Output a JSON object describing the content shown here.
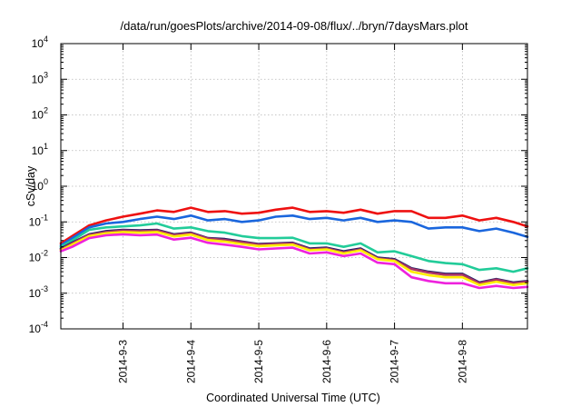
{
  "chart_data": {
    "type": "line",
    "title": "/data/run/goesPlots/archive/2014-09-08/flux/../bryn/7daysMars.plot",
    "xlabel": "Coordinated Universal Time (UTC)",
    "ylabel": "cSv/day",
    "yscale": "log",
    "ylim": [
      0.0001,
      10000
    ],
    "y_ticks": [
      {
        "base": "10",
        "exp": "-4",
        "value": 0.0001
      },
      {
        "base": "10",
        "exp": "-3",
        "value": 0.001
      },
      {
        "base": "10",
        "exp": "-2",
        "value": 0.01
      },
      {
        "base": "10",
        "exp": "-1",
        "value": 0.1
      },
      {
        "base": "10",
        "exp": "0",
        "value": 1
      },
      {
        "base": "10",
        "exp": "1",
        "value": 10
      },
      {
        "base": "10",
        "exp": "2",
        "value": 100
      },
      {
        "base": "10",
        "exp": "3",
        "value": 1000
      },
      {
        "base": "10",
        "exp": "4",
        "value": 10000
      }
    ],
    "xlim": [
      "2014-09-02T02:00",
      "2014-09-08T23:00"
    ],
    "x_ticks": [
      "2014-9-3",
      "2014-9-4",
      "2014-9-5",
      "2014-9-6",
      "2014-9-7",
      "2014-9-8"
    ],
    "grid": true,
    "series": [
      {
        "color": "#ee1111",
        "x": [
          "2014-09-02T02:00",
          "2014-09-02T06:00",
          "2014-09-02T12:00",
          "2014-09-02T18:00",
          "2014-09-03T00:00",
          "2014-09-03T06:00",
          "2014-09-03T12:00",
          "2014-09-03T18:00",
          "2014-09-04T00:00",
          "2014-09-04T06:00",
          "2014-09-04T12:00",
          "2014-09-04T18:00",
          "2014-09-05T00:00",
          "2014-09-05T06:00",
          "2014-09-05T12:00",
          "2014-09-05T18:00",
          "2014-09-06T00:00",
          "2014-09-06T06:00",
          "2014-09-06T12:00",
          "2014-09-06T18:00",
          "2014-09-07T00:00",
          "2014-09-07T06:00",
          "2014-09-07T12:00",
          "2014-09-07T18:00",
          "2014-09-08T00:00",
          "2014-09-08T06:00",
          "2014-09-08T12:00",
          "2014-09-08T18:00",
          "2014-09-08T23:00"
        ],
        "y": [
          0.025,
          0.04,
          0.08,
          0.11,
          0.14,
          0.17,
          0.21,
          0.19,
          0.25,
          0.19,
          0.2,
          0.17,
          0.18,
          0.22,
          0.25,
          0.19,
          0.2,
          0.18,
          0.22,
          0.17,
          0.2,
          0.2,
          0.13,
          0.13,
          0.15,
          0.11,
          0.13,
          0.1,
          0.075
        ]
      },
      {
        "color": "#1a66dd",
        "x": [
          "2014-09-02T02:00",
          "2014-09-02T06:00",
          "2014-09-02T12:00",
          "2014-09-02T18:00",
          "2014-09-03T00:00",
          "2014-09-03T06:00",
          "2014-09-03T12:00",
          "2014-09-03T18:00",
          "2014-09-04T00:00",
          "2014-09-04T06:00",
          "2014-09-04T12:00",
          "2014-09-04T18:00",
          "2014-09-05T00:00",
          "2014-09-05T06:00",
          "2014-09-05T12:00",
          "2014-09-05T18:00",
          "2014-09-06T00:00",
          "2014-09-06T06:00",
          "2014-09-06T12:00",
          "2014-09-06T18:00",
          "2014-09-07T00:00",
          "2014-09-07T06:00",
          "2014-09-07T12:00",
          "2014-09-07T18:00",
          "2014-09-08T00:00",
          "2014-09-08T06:00",
          "2014-09-08T12:00",
          "2014-09-08T18:00",
          "2014-09-08T23:00"
        ],
        "y": [
          0.022,
          0.035,
          0.07,
          0.09,
          0.1,
          0.12,
          0.14,
          0.12,
          0.15,
          0.11,
          0.12,
          0.1,
          0.11,
          0.14,
          0.15,
          0.12,
          0.13,
          0.11,
          0.13,
          0.1,
          0.11,
          0.1,
          0.065,
          0.07,
          0.07,
          0.055,
          0.065,
          0.05,
          0.038
        ]
      },
      {
        "color": "#22cc99",
        "x": [
          "2014-09-02T02:00",
          "2014-09-02T06:00",
          "2014-09-02T12:00",
          "2014-09-02T18:00",
          "2014-09-03T00:00",
          "2014-09-03T06:00",
          "2014-09-03T12:00",
          "2014-09-03T18:00",
          "2014-09-04T00:00",
          "2014-09-04T06:00",
          "2014-09-04T12:00",
          "2014-09-04T18:00",
          "2014-09-05T00:00",
          "2014-09-05T06:00",
          "2014-09-05T12:00",
          "2014-09-05T18:00",
          "2014-09-06T00:00",
          "2014-09-06T06:00",
          "2014-09-06T12:00",
          "2014-09-06T18:00",
          "2014-09-07T00:00",
          "2014-09-07T06:00",
          "2014-09-07T12:00",
          "2014-09-07T18:00",
          "2014-09-08T00:00",
          "2014-09-08T06:00",
          "2014-09-08T12:00",
          "2014-09-08T18:00",
          "2014-09-08T23:00"
        ],
        "y": [
          0.02,
          0.03,
          0.06,
          0.07,
          0.075,
          0.08,
          0.09,
          0.065,
          0.07,
          0.055,
          0.05,
          0.04,
          0.035,
          0.035,
          0.036,
          0.025,
          0.025,
          0.02,
          0.025,
          0.014,
          0.015,
          0.011,
          0.008,
          0.007,
          0.0065,
          0.0045,
          0.005,
          0.004,
          0.005
        ]
      },
      {
        "color": "#222266",
        "x": [
          "2014-09-02T02:00",
          "2014-09-02T06:00",
          "2014-09-02T12:00",
          "2014-09-02T18:00",
          "2014-09-03T00:00",
          "2014-09-03T06:00",
          "2014-09-03T12:00",
          "2014-09-03T18:00",
          "2014-09-04T00:00",
          "2014-09-04T06:00",
          "2014-09-04T12:00",
          "2014-09-04T18:00",
          "2014-09-05T00:00",
          "2014-09-05T06:00",
          "2014-09-05T12:00",
          "2014-09-05T18:00",
          "2014-09-06T00:00",
          "2014-09-06T06:00",
          "2014-09-06T12:00",
          "2014-09-06T18:00",
          "2014-09-07T00:00",
          "2014-09-07T06:00",
          "2014-09-07T12:00",
          "2014-09-07T18:00",
          "2014-09-08T00:00",
          "2014-09-08T06:00",
          "2014-09-08T12:00",
          "2014-09-08T18:00",
          "2014-09-08T23:00"
        ],
        "y": [
          0.018,
          0.026,
          0.045,
          0.055,
          0.06,
          0.058,
          0.06,
          0.045,
          0.05,
          0.035,
          0.033,
          0.028,
          0.024,
          0.025,
          0.026,
          0.018,
          0.019,
          0.015,
          0.018,
          0.01,
          0.009,
          0.005,
          0.004,
          0.0035,
          0.0035,
          0.002,
          0.0025,
          0.002,
          0.0022
        ]
      },
      {
        "color": "#aa3366",
        "x": [
          "2014-09-02T02:00",
          "2014-09-02T06:00",
          "2014-09-02T12:00",
          "2014-09-02T18:00",
          "2014-09-03T00:00",
          "2014-09-03T06:00",
          "2014-09-03T12:00",
          "2014-09-03T18:00",
          "2014-09-04T00:00",
          "2014-09-04T06:00",
          "2014-09-04T12:00",
          "2014-09-04T18:00",
          "2014-09-05T00:00",
          "2014-09-05T06:00",
          "2014-09-05T12:00",
          "2014-09-05T18:00",
          "2014-09-06T00:00",
          "2014-09-06T06:00",
          "2014-09-06T12:00",
          "2014-09-06T18:00",
          "2014-09-07T00:00",
          "2014-09-07T06:00",
          "2014-09-07T12:00",
          "2014-09-07T18:00",
          "2014-09-08T00:00",
          "2014-09-08T06:00",
          "2014-09-08T12:00",
          "2014-09-08T18:00",
          "2014-09-08T23:00"
        ],
        "y": [
          0.017,
          0.025,
          0.043,
          0.052,
          0.057,
          0.055,
          0.057,
          0.043,
          0.048,
          0.034,
          0.031,
          0.027,
          0.023,
          0.024,
          0.025,
          0.017,
          0.018,
          0.014,
          0.017,
          0.0095,
          0.0085,
          0.0048,
          0.0038,
          0.0033,
          0.0033,
          0.0019,
          0.0024,
          0.0019,
          0.0021
        ]
      },
      {
        "color": "#ffee00",
        "x": [
          "2014-09-02T02:00",
          "2014-09-02T06:00",
          "2014-09-02T12:00",
          "2014-09-02T18:00",
          "2014-09-03T00:00",
          "2014-09-03T06:00",
          "2014-09-03T12:00",
          "2014-09-03T18:00",
          "2014-09-04T00:00",
          "2014-09-04T06:00",
          "2014-09-04T12:00",
          "2014-09-04T18:00",
          "2014-09-05T00:00",
          "2014-09-05T06:00",
          "2014-09-05T12:00",
          "2014-09-05T18:00",
          "2014-09-06T00:00",
          "2014-09-06T06:00",
          "2014-09-06T12:00",
          "2014-09-06T18:00",
          "2014-09-07T00:00",
          "2014-09-07T06:00",
          "2014-09-07T12:00",
          "2014-09-07T18:00",
          "2014-09-08T00:00",
          "2014-09-08T06:00",
          "2014-09-08T12:00",
          "2014-09-08T18:00",
          "2014-09-08T23:00"
        ],
        "y": [
          0.016,
          0.023,
          0.04,
          0.048,
          0.052,
          0.05,
          0.052,
          0.039,
          0.044,
          0.031,
          0.028,
          0.024,
          0.021,
          0.022,
          0.023,
          0.016,
          0.017,
          0.013,
          0.016,
          0.009,
          0.008,
          0.004,
          0.0032,
          0.0028,
          0.0028,
          0.0017,
          0.0021,
          0.0017,
          0.0019
        ]
      },
      {
        "color": "#ee22dd",
        "x": [
          "2014-09-02T02:00",
          "2014-09-02T06:00",
          "2014-09-02T12:00",
          "2014-09-02T18:00",
          "2014-09-03T00:00",
          "2014-09-03T06:00",
          "2014-09-03T12:00",
          "2014-09-03T18:00",
          "2014-09-04T00:00",
          "2014-09-04T06:00",
          "2014-09-04T12:00",
          "2014-09-04T18:00",
          "2014-09-05T00:00",
          "2014-09-05T06:00",
          "2014-09-05T12:00",
          "2014-09-05T18:00",
          "2014-09-06T00:00",
          "2014-09-06T06:00",
          "2014-09-06T12:00",
          "2014-09-06T18:00",
          "2014-09-07T00:00",
          "2014-09-07T06:00",
          "2014-09-07T12:00",
          "2014-09-07T18:00",
          "2014-09-08T00:00",
          "2014-09-08T06:00",
          "2014-09-08T12:00",
          "2014-09-08T18:00",
          "2014-09-08T23:00"
        ],
        "y": [
          0.015,
          0.02,
          0.035,
          0.042,
          0.045,
          0.042,
          0.044,
          0.032,
          0.036,
          0.026,
          0.023,
          0.02,
          0.017,
          0.018,
          0.019,
          0.013,
          0.014,
          0.011,
          0.013,
          0.0072,
          0.0065,
          0.0028,
          0.0022,
          0.0019,
          0.0019,
          0.0014,
          0.0016,
          0.0014,
          0.0015
        ]
      }
    ]
  }
}
